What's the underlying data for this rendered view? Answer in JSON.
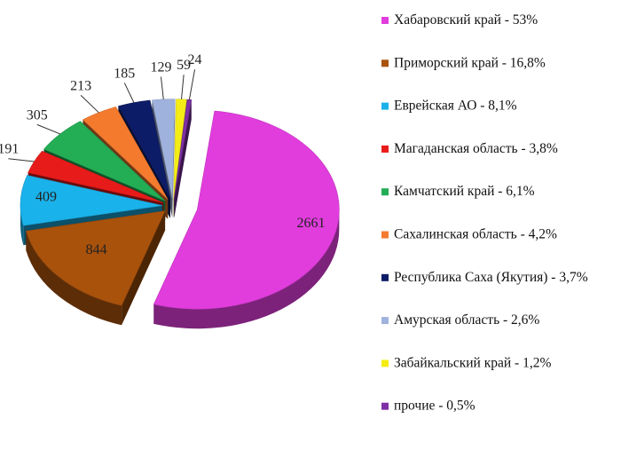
{
  "chart_data": {
    "type": "pie",
    "style": "3d-exploded",
    "legend_position": "right",
    "slices": [
      {
        "label": "Хабаровский край - 53%",
        "value": 2661,
        "color": "#e13ddd"
      },
      {
        "label": "Приморский край - 16,8%",
        "value": 844,
        "color": "#a9520c"
      },
      {
        "label": "Еврейская АО - 8,1%",
        "value": 409,
        "color": "#1ab2ea"
      },
      {
        "label": "Магаданская область - 3,8%",
        "value": 191,
        "color": "#e81b1b"
      },
      {
        "label": "Камчатский край - 6,1%",
        "value": 305,
        "color": "#23ad55"
      },
      {
        "label": "Сахалинская область - 4,2%",
        "value": 213,
        "color": "#f47a2e"
      },
      {
        "label": "Республика Саха (Якутия) - 3,7%",
        "value": 185,
        "color": "#0d1c66"
      },
      {
        "label": "Амурская область - 2,6%",
        "value": 129,
        "color": "#9fb2dd"
      },
      {
        "label": "Забайкальский край - 1,2%",
        "value": 59,
        "color": "#f5ec16"
      },
      {
        "label": "прочие - 0,5%",
        "value": 24,
        "color": "#7f2fa6"
      }
    ]
  }
}
